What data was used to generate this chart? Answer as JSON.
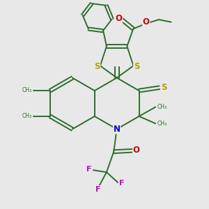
{
  "bg_color": "#e8e8e8",
  "bond_color": "#2d6e2d",
  "s_color": "#b8a000",
  "n_color": "#0000cc",
  "o_color": "#cc0000",
  "f_color": "#cc00cc",
  "line_width": 1.4,
  "figsize": [
    3.0,
    3.0
  ],
  "dpi": 100,
  "xlim": [
    0,
    10
  ],
  "ylim": [
    0,
    10
  ]
}
